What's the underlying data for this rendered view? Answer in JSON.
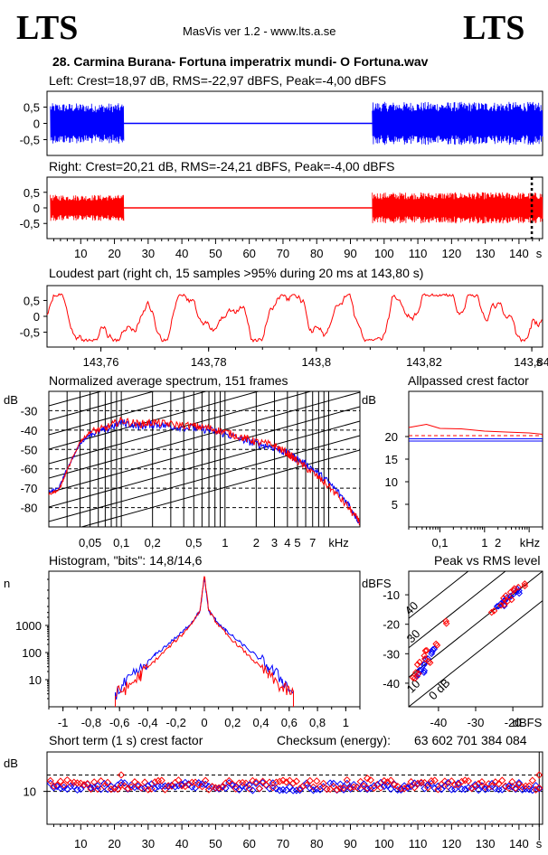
{
  "header": {
    "logo_left": "LTS",
    "logo_right": "LTS",
    "app": "MasVis ver 1.2 - www.lts.a.se",
    "file_title": "28. Carmina Burana- Fortuna imperatrix mundi- O Fortuna.wav"
  },
  "colors": {
    "left": "#0000ff",
    "right": "#ff0000"
  },
  "chart_data": [
    {
      "id": "left_waveform",
      "type": "area",
      "title": "Left: Crest=18,97 dB, RMS=-22,97 dBFS, Peak=-4,00 dBFS",
      "yticks": [
        "0,5",
        "0",
        "-0,5"
      ],
      "ylim": [
        -1,
        1
      ],
      "xlim": [
        0,
        147
      ],
      "segments": [
        {
          "from": 1,
          "to": 22.8,
          "level": 0.62
        },
        {
          "from": 22.8,
          "to": 96.5,
          "level": 0.0
        },
        {
          "from": 96.5,
          "to": 147,
          "level": 0.66
        }
      ]
    },
    {
      "id": "right_waveform",
      "type": "area",
      "title": "Right: Crest=20,21 dB, RMS=-24,21 dBFS, Peak=-4,00 dBFS",
      "yticks": [
        "0,5",
        "0",
        "-0,5"
      ],
      "ylim": [
        -1,
        1
      ],
      "xlim": [
        0,
        147
      ],
      "xticks": [
        10,
        20,
        30,
        40,
        50,
        60,
        70,
        80,
        90,
        100,
        110,
        120,
        130,
        140
      ],
      "xunit": "s",
      "marker_x": 143.8,
      "segments": [
        {
          "from": 1,
          "to": 22.8,
          "level": 0.42
        },
        {
          "from": 22.8,
          "to": 96.5,
          "level": 0.0
        },
        {
          "from": 96.5,
          "to": 147,
          "level": 0.5
        }
      ]
    },
    {
      "id": "loudest_part",
      "type": "line",
      "title": "Loudest part (right ch, 15 samples >95% during 20 ms at 143,80 s)",
      "yticks": [
        "0,5",
        "0",
        "-0,5"
      ],
      "ylim": [
        -1,
        1
      ],
      "xlim": [
        143.75,
        143.842
      ],
      "xtick_labels": [
        "143,76",
        "143,78",
        "143,8",
        "143,82",
        "143,84"
      ],
      "xticks": [
        143.76,
        143.78,
        143.8,
        143.82,
        143.84
      ],
      "xunit": "s"
    },
    {
      "id": "spectrum",
      "type": "line",
      "title": "Normalized average spectrum, 151 frames",
      "ylabel": "dB",
      "yticks": [
        -30,
        -40,
        -50,
        -60,
        -70,
        -80
      ],
      "ylim": [
        -90,
        -20
      ],
      "xscale": "log",
      "xlim_khz": [
        0.02,
        20
      ],
      "xtick_labels": [
        "0,05",
        "0,1",
        "0,2",
        "0,5",
        "1",
        "2",
        "3",
        "4",
        "5",
        "7",
        "kHz"
      ],
      "xticks_khz": [
        0.05,
        0.1,
        0.2,
        0.5,
        1,
        2,
        3,
        4,
        5,
        7
      ],
      "series": [
        {
          "name": "left",
          "x_khz": [
            0.02,
            0.025,
            0.03,
            0.04,
            0.05,
            0.07,
            0.1,
            0.15,
            0.2,
            0.3,
            0.5,
            0.7,
            1,
            1.5,
            2,
            3,
            4,
            5,
            7,
            10,
            15,
            20
          ],
          "y": [
            -72,
            -70,
            -60,
            -47,
            -42,
            -40,
            -36,
            -38,
            -37,
            -38,
            -39,
            -40,
            -42,
            -45,
            -47,
            -49,
            -52,
            -55,
            -60,
            -67,
            -77,
            -88
          ]
        },
        {
          "name": "right",
          "x_khz": [
            0.02,
            0.025,
            0.03,
            0.04,
            0.05,
            0.07,
            0.1,
            0.15,
            0.2,
            0.3,
            0.5,
            0.7,
            1,
            1.5,
            2,
            3,
            4,
            5,
            7,
            10,
            15,
            20
          ],
          "y": [
            -73,
            -71,
            -61,
            -46,
            -41,
            -39,
            -35,
            -37,
            -36,
            -37,
            -38,
            -39,
            -41,
            -44,
            -46,
            -48,
            -52,
            -56,
            -62,
            -69,
            -79,
            -88
          ]
        }
      ]
    },
    {
      "id": "allpassed_crest",
      "type": "line",
      "title": "Allpassed crest factor",
      "ylabel": "dB",
      "yticks": [
        20,
        15,
        10,
        5
      ],
      "ylim": [
        0,
        30
      ],
      "xscale": "log",
      "xlim_khz": [
        0.02,
        20
      ],
      "xtick_labels": [
        "0,1",
        "1",
        "2",
        "kHz"
      ],
      "xticks_khz": [
        0.1,
        1,
        2
      ],
      "series": [
        {
          "name": "left",
          "x_khz": [
            0.02,
            20
          ],
          "y": [
            19.5,
            19.5
          ]
        },
        {
          "name": "right",
          "x_khz": [
            0.02,
            0.05,
            0.1,
            0.3,
            1,
            3,
            10,
            20
          ],
          "y": [
            22,
            22.7,
            21.8,
            21.7,
            21.2,
            21,
            20.8,
            20.5
          ]
        }
      ],
      "reference_left": 19.0,
      "reference_right": 20.2
    },
    {
      "id": "histogram",
      "type": "line",
      "title": "Histogram, \"bits\": 14,8/14,6",
      "ylabel": "n",
      "yscale": "log",
      "yticks": [
        1000,
        100,
        10
      ],
      "ytick_labels": [
        "1000",
        "100",
        "10"
      ],
      "ylim": [
        1,
        100000
      ],
      "xlim": [
        -1.1,
        1.1
      ],
      "xticks": [
        -1,
        -0.8,
        -0.6,
        -0.4,
        -0.2,
        0,
        0.2,
        0.4,
        0.6,
        0.8,
        1
      ],
      "xtick_labels": [
        "-1",
        "-0,8",
        "-0,6",
        "-0,4",
        "-0,2",
        "0",
        "0,2",
        "0,4",
        "0,6",
        "0,8",
        "1"
      ],
      "series": [
        {
          "name": "left",
          "x": [
            -0.63,
            -0.55,
            -0.45,
            -0.35,
            -0.25,
            -0.15,
            -0.08,
            -0.03,
            0,
            0.03,
            0.08,
            0.15,
            0.25,
            0.35,
            0.45,
            0.55,
            0.63
          ],
          "y": [
            3,
            8,
            25,
            80,
            220,
            600,
            1500,
            3500,
            60000,
            3500,
            1600,
            650,
            240,
            90,
            30,
            10,
            3
          ]
        },
        {
          "name": "right",
          "x": [
            -0.63,
            -0.55,
            -0.45,
            -0.35,
            -0.25,
            -0.15,
            -0.08,
            -0.03,
            0,
            0.03,
            0.08,
            0.15,
            0.25,
            0.35,
            0.45,
            0.55,
            0.63
          ],
          "y": [
            3,
            5,
            15,
            50,
            160,
            500,
            1400,
            3800,
            70000,
            3800,
            1400,
            500,
            160,
            50,
            15,
            5,
            3
          ]
        }
      ]
    },
    {
      "id": "peak_vs_rms",
      "type": "scatter",
      "title": "Peak vs RMS level",
      "ylabel": "dBFS",
      "xlabel": "dBFS",
      "yticks": [
        -10,
        -20,
        -30,
        -40
      ],
      "xticks": [
        -40,
        -30,
        -20
      ],
      "xlim": [
        -48,
        -12
      ],
      "ylim": [
        -48,
        -2
      ],
      "diag_labels": [
        "40",
        "30",
        "10",
        "0 dB"
      ],
      "series": [
        {
          "name": "left",
          "points": [
            [
              -46,
              -37
            ],
            [
              -45,
              -35
            ],
            [
              -44,
              -34
            ],
            [
              -43,
              -32
            ],
            [
              -42,
              -30
            ],
            [
              -44,
              -36
            ],
            [
              -41,
              -29
            ],
            [
              -24,
              -14
            ],
            [
              -22,
              -12
            ],
            [
              -21,
              -11
            ],
            [
              -20,
              -10
            ],
            [
              -19,
              -9
            ],
            [
              -18,
              -8
            ],
            [
              -23,
              -13
            ]
          ]
        },
        {
          "name": "right",
          "points": [
            [
              -47,
              -38
            ],
            [
              -46,
              -36
            ],
            [
              -45,
              -33
            ],
            [
              -44,
              -31
            ],
            [
              -43,
              -29
            ],
            [
              -42,
              -33
            ],
            [
              -40,
              -27
            ],
            [
              -38,
              -19
            ],
            [
              -25,
              -16
            ],
            [
              -23,
              -13
            ],
            [
              -22,
              -11
            ],
            [
              -20,
              -9
            ],
            [
              -19,
              -8
            ],
            [
              -17,
              -7
            ],
            [
              -21,
              -12
            ]
          ]
        }
      ]
    },
    {
      "id": "short_term_crest",
      "type": "scatter",
      "title": "Short term (1 s) crest factor",
      "ylabel": "dB",
      "yticks": [
        10
      ],
      "ylim": [
        0,
        22
      ],
      "xlim": [
        0,
        147
      ],
      "xticks": [
        10,
        20,
        30,
        40,
        50,
        60,
        70,
        80,
        90,
        100,
        110,
        120,
        130,
        140
      ],
      "xunit": "s",
      "dashed_levels": [
        10,
        15
      ],
      "left_mean": 11.5,
      "right_mean": 12.0,
      "outliers": [
        [
          22,
          15
        ],
        [
          95,
          14
        ],
        [
          146,
          15
        ]
      ]
    }
  ],
  "checksum": {
    "label": "Checksum (energy):",
    "value": "63 602 701 384 084"
  }
}
